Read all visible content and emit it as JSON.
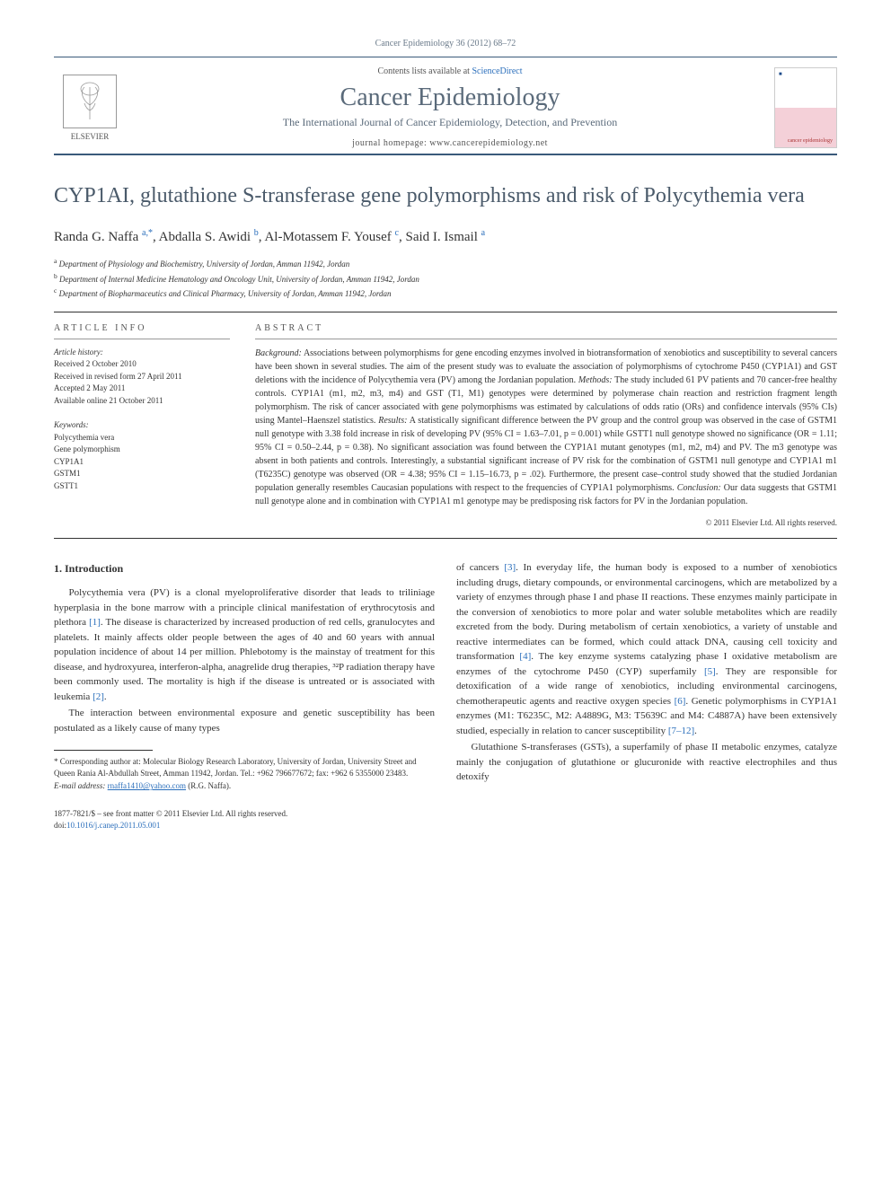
{
  "header": {
    "journal_ref": "Cancer Epidemiology 36 (2012) 68–72",
    "contents_prefix": "Contents lists available at ",
    "contents_link": "ScienceDirect",
    "journal_title": "Cancer Epidemiology",
    "journal_subtitle": "The International Journal of Cancer Epidemiology, Detection, and Prevention",
    "homepage_prefix": "journal homepage: ",
    "homepage_url": "www.cancerepidemiology.net",
    "publisher_label": "ELSEVIER",
    "cover_top": "■",
    "cover_bottom": "cancer\nepidemiology"
  },
  "article": {
    "title": "CYP1AI, glutathione S-transferase gene polymorphisms and risk of Polycythemia vera",
    "authors_html": "Randa G. Naffa <sup>a,*</sup>, Abdalla S. Awidi <sup>b</sup>, Al-Motassem F. Yousef <sup>c</sup>, Said I. Ismail <sup>a</sup>",
    "affiliations": [
      "a Department of Physiology and Biochemistry, University of Jordan, Amman 11942, Jordan",
      "b Department of Internal Medicine Hematology and Oncology Unit, University of Jordan, Amman 11942, Jordan",
      "c Department of Biopharmaceutics and Clinical Pharmacy, University of Jordan, Amman 11942, Jordan"
    ]
  },
  "info": {
    "heading": "ARTICLE INFO",
    "history_title": "Article history:",
    "history_lines": [
      "Received 2 October 2010",
      "Received in revised form 27 April 2011",
      "Accepted 2 May 2011",
      "Available online 21 October 2011"
    ],
    "keywords_title": "Keywords:",
    "keywords": [
      "Polycythemia vera",
      "Gene polymorphism",
      "CYP1A1",
      "GSTM1",
      "GSTT1"
    ]
  },
  "abstract": {
    "heading": "ABSTRACT",
    "background_label": "Background:",
    "background": " Associations between polymorphisms for gene encoding enzymes involved in biotransformation of xenobiotics and susceptibility to several cancers have been shown in several studies. The aim of the present study was to evaluate the association of polymorphisms of cytochrome P450 (CYP1A1) and GST deletions with the incidence of Polycythemia vera (PV) among the Jordanian population. ",
    "methods_label": "Methods:",
    "methods": " The study included 61 PV patients and 70 cancer-free healthy controls. CYP1A1 (m1, m2, m3, m4) and GST (T1, M1) genotypes were determined by polymerase chain reaction and restriction fragment length polymorphism. The risk of cancer associated with gene polymorphisms was estimated by calculations of odds ratio (ORs) and confidence intervals (95% CIs) using Mantel–Haenszel statistics. ",
    "results_label": "Results:",
    "results": " A statistically significant difference between the PV group and the control group was observed in the case of GSTM1 null genotype with 3.38 fold increase in risk of developing PV (95% CI = 1.63–7.01, p = 0.001) while GSTT1 null genotype showed no significance (OR = 1.11; 95% CI = 0.50–2.44, p = 0.38). No significant association was found between the CYP1A1 mutant genotypes (m1, m2, m4) and PV. The m3 genotype was absent in both patients and controls. Interestingly, a substantial significant increase of PV risk for the combination of GSTM1 null genotype and CYP1A1 m1 (T6235C) genotype was observed (OR = 4.38; 95% CI = 1.15–16.73, p = .02). Furthermore, the present case–control study showed that the studied Jordanian population generally resembles Caucasian populations with respect to the frequencies of CYP1A1 polymorphisms. ",
    "conclusion_label": "Conclusion:",
    "conclusion": " Our data suggests that GSTM1 null genotype alone and in combination with CYP1A1 m1 genotype may be predisposing risk factors for PV in the Jordanian population.",
    "copyright": "© 2011 Elsevier Ltd. All rights reserved."
  },
  "body": {
    "section1_heading": "1. Introduction",
    "p1": "Polycythemia vera (PV) is a clonal myeloproliferative disorder that leads to triliniage hyperplasia in the bone marrow with a principle clinical manifestation of erythrocytosis and plethora [1]. The disease is characterized by increased production of red cells, granulocytes and platelets. It mainly affects older people between the ages of 40 and 60 years with annual population incidence of about 14 per million. Phlebotomy is the mainstay of treatment for this disease, and hydroxyurea, interferon-alpha, anagrelide drug therapies, ³²P radiation therapy have been commonly used. The mortality is high if the disease is untreated or is associated with leukemia [2].",
    "p2": "The interaction between environmental exposure and genetic susceptibility has been postulated as a likely cause of many types",
    "p3": "of cancers [3]. In everyday life, the human body is exposed to a number of xenobiotics including drugs, dietary compounds, or environmental carcinogens, which are metabolized by a variety of enzymes through phase I and phase II reactions. These enzymes mainly participate in the conversion of xenobiotics to more polar and water soluble metabolites which are readily excreted from the body. During metabolism of certain xenobiotics, a variety of unstable and reactive intermediates can be formed, which could attack DNA, causing cell toxicity and transformation [4]. The key enzyme systems catalyzing phase I oxidative metabolism are enzymes of the cytochrome P450 (CYP) superfamily [5]. They are responsible for detoxification of a wide range of xenobiotics, including environmental carcinogens, chemotherapeutic agents and reactive oxygen species [6]. Genetic polymorphisms in CYP1A1 enzymes (M1: T6235C, M2: A4889G, M3: T5639C and M4: C4887A) have been extensively studied, especially in relation to cancer susceptibility [7–12].",
    "p4": "Glutathione S-transferases (GSTs), a superfamily of phase II metabolic enzymes, catalyze mainly the conjugation of glutathione or glucuronide with reactive electrophiles and thus detoxify"
  },
  "footnotes": {
    "corresponding": "* Corresponding author at: Molecular Biology Research Laboratory, University of Jordan, University Street and Queen Rania Al-Abdullah Street, Amman 11942, Jordan. Tel.: +962 796677672; fax: +962 6 5355000 23483.",
    "email_label": "E-mail address: ",
    "email": "rnaffa1410@yahoo.com",
    "email_person": " (R.G. Naffa)."
  },
  "footer": {
    "line1": "1877-7821/$ – see front matter © 2011 Elsevier Ltd. All rights reserved.",
    "doi_prefix": "doi:",
    "doi": "10.1016/j.canep.2011.05.001"
  },
  "colors": {
    "link": "#2a6ebb",
    "rule": "#3a5a7a",
    "heading_gray": "#5a6a7a"
  }
}
